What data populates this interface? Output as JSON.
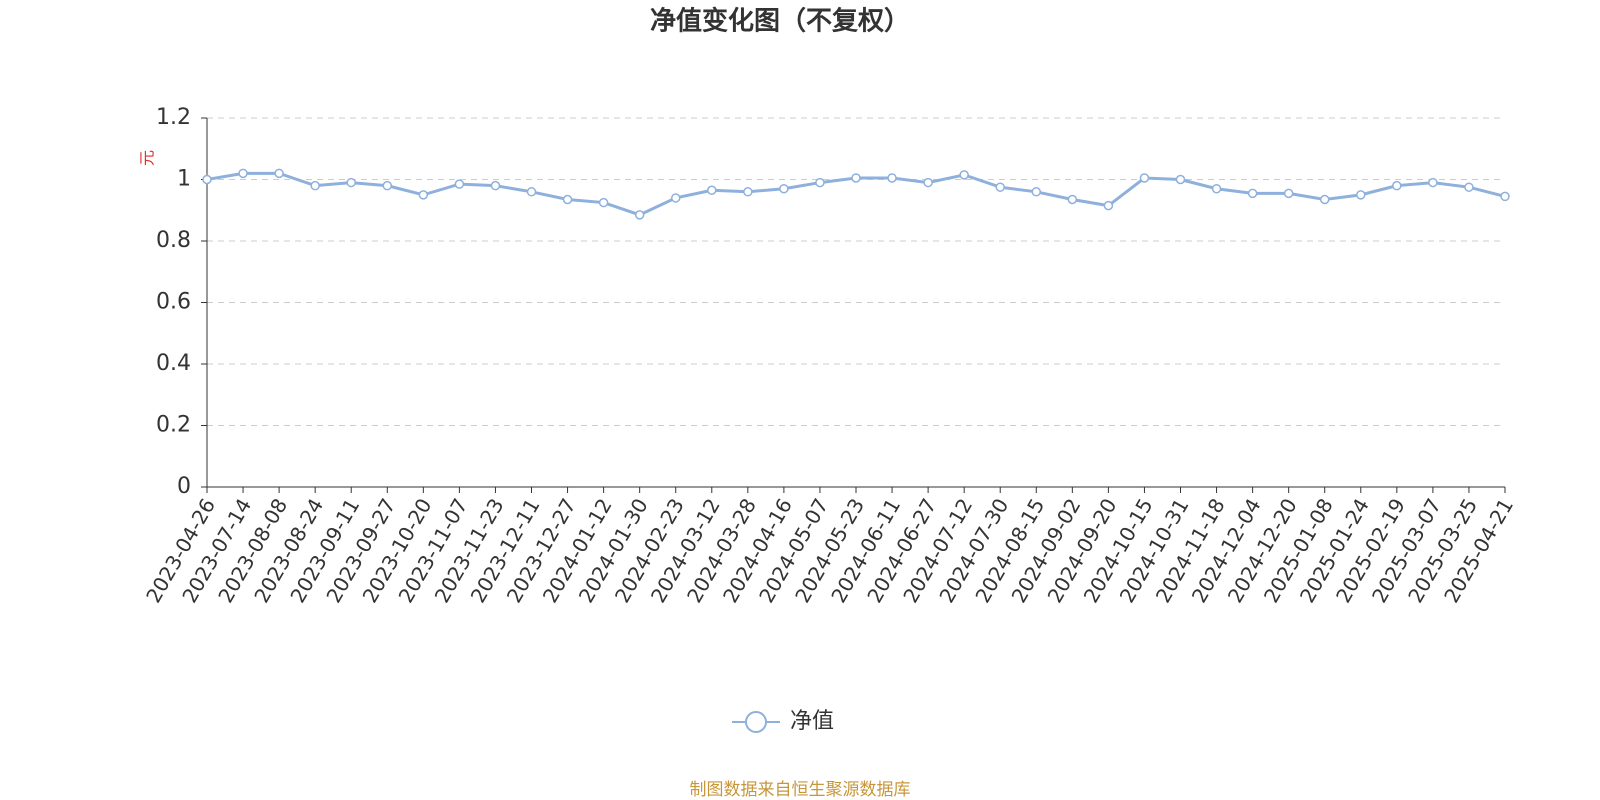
{
  "chart_data": {
    "type": "line",
    "title": "净值变化图（不复权）",
    "y_label": "元",
    "source": "制图数据来自恒生聚源数据库",
    "categories": [
      "2023-04-26",
      "2023-07-14",
      "2023-08-08",
      "2023-08-24",
      "2023-09-11",
      "2023-09-27",
      "2023-10-20",
      "2023-11-07",
      "2023-11-23",
      "2023-12-11",
      "2023-12-27",
      "2024-01-12",
      "2024-01-30",
      "2024-02-23",
      "2024-03-12",
      "2024-03-28",
      "2024-04-16",
      "2024-05-07",
      "2024-05-23",
      "2024-06-11",
      "2024-06-27",
      "2024-07-12",
      "2024-07-30",
      "2024-08-15",
      "2024-09-02",
      "2024-09-20",
      "2024-10-15",
      "2024-10-31",
      "2024-11-18",
      "2024-12-04",
      "2024-12-20",
      "2025-01-08",
      "2025-01-24",
      "2025-02-19",
      "2025-03-07",
      "2025-03-25",
      "2025-04-21"
    ],
    "series": [
      {
        "name": "净值",
        "color": "#8eb0dc",
        "values": [
          1.0,
          1.02,
          1.02,
          0.98,
          0.99,
          0.98,
          0.95,
          0.985,
          0.98,
          0.96,
          0.935,
          0.925,
          0.885,
          0.94,
          0.965,
          0.96,
          0.97,
          0.99,
          1.005,
          1.005,
          0.99,
          1.015,
          0.975,
          0.96,
          0.935,
          0.915,
          1.005,
          1.0,
          0.97,
          0.955,
          0.955,
          0.935,
          0.95,
          0.98,
          0.99,
          0.975,
          0.945
        ]
      }
    ],
    "ylim": [
      0,
      1.2
    ],
    "yticks": [
      0,
      0.2,
      0.4,
      0.6,
      0.8,
      1,
      1.2
    ],
    "grid": true
  }
}
